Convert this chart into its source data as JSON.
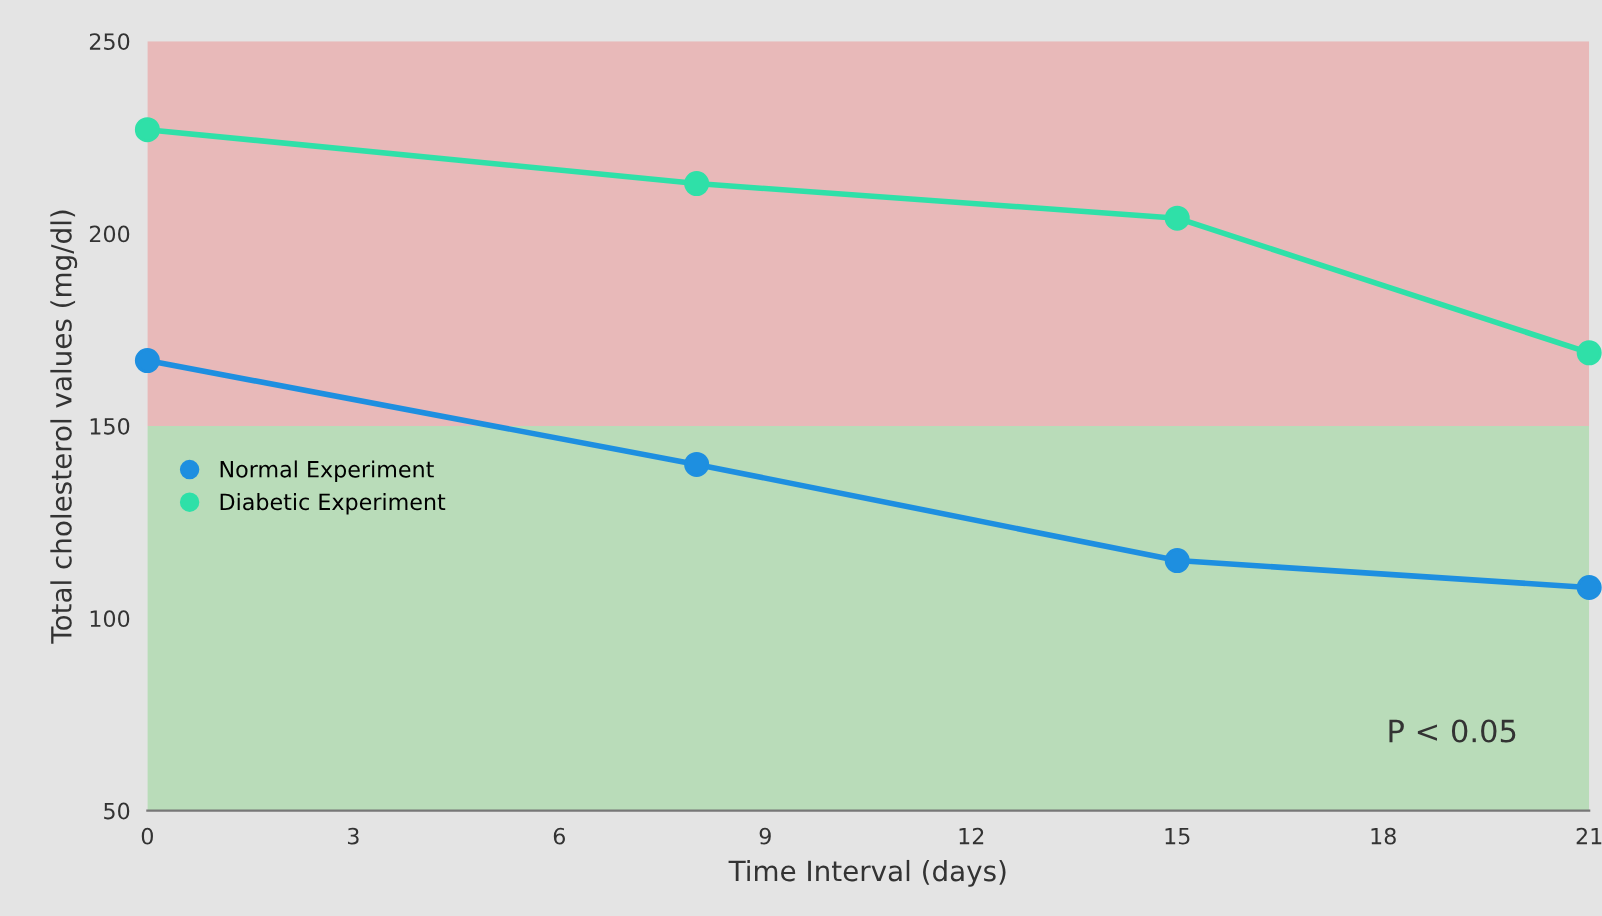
{
  "chart_data": {
    "type": "line",
    "xlabel": "Time Interval (days)",
    "ylabel": "Total cholesterol values (mg/dl)",
    "x": [
      0,
      8,
      15,
      21
    ],
    "series": [
      {
        "name": "Normal Experiment",
        "color": "#1e8fe0",
        "values": [
          167,
          140,
          115,
          108
        ]
      },
      {
        "name": "Diabetic Experiment",
        "color": "#2fe0a8",
        "values": [
          227,
          213,
          204,
          169
        ]
      }
    ],
    "xlim": [
      0,
      21
    ],
    "xticks": [
      0,
      3,
      6,
      9,
      12,
      15,
      18,
      21
    ],
    "ylim": [
      50,
      250
    ],
    "yticks": [
      50,
      100,
      150,
      200,
      250
    ],
    "bands": [
      {
        "axis": "y",
        "from": 150,
        "to": 250,
        "color": "#e8b9b9"
      },
      {
        "axis": "y",
        "from": 50,
        "to": 150,
        "color": "#b9dcb9"
      }
    ],
    "annotations": [
      "P < 0.05"
    ],
    "marker": "circle",
    "line_style": "solid",
    "legend": "left",
    "grid": false
  }
}
